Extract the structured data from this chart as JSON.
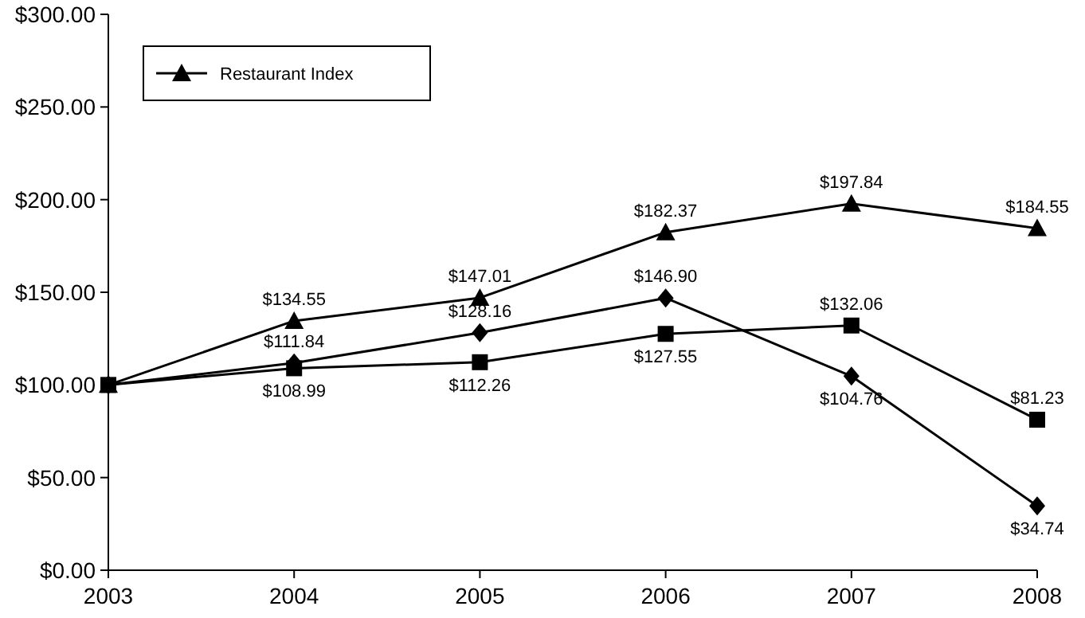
{
  "chart_data": {
    "type": "line",
    "x": [
      2003,
      2004,
      2005,
      2006,
      2007,
      2008
    ],
    "xlim": [
      2003,
      2008
    ],
    "xticks": [
      2003,
      2004,
      2005,
      2006,
      2007,
      2008
    ],
    "ylim": [
      0,
      300
    ],
    "yticks": [
      {
        "value": 0,
        "label": "$0.00"
      },
      {
        "value": 50,
        "label": "$50.00"
      },
      {
        "value": 100,
        "label": "$100.00"
      },
      {
        "value": 150,
        "label": "$150.00"
      },
      {
        "value": 200,
        "label": "$200.00"
      },
      {
        "value": 250,
        "label": "$250.00"
      },
      {
        "value": 300,
        "label": "$300.00"
      }
    ],
    "grid": false,
    "legend": "top left",
    "line_style": "solid",
    "series": [
      {
        "color": "#000000",
        "marker": "diamond",
        "values": [
          100,
          111.84,
          128.16,
          146.9,
          104.76,
          34.74
        ],
        "value_labels": [
          null,
          "$111.84",
          "$128.16",
          "$146.90",
          "$104.76",
          "$34.74"
        ]
      },
      {
        "color": "#000000",
        "marker": "square",
        "values": [
          100,
          108.99,
          112.26,
          127.55,
          132.06,
          81.23
        ],
        "value_labels": [
          null,
          "$108.99",
          "$112.26",
          "$127.55",
          "$132.06",
          "$81.23"
        ]
      },
      {
        "name": "Restaurant Index",
        "color": "#000000",
        "marker": "triangle",
        "values": [
          100,
          134.55,
          147.01,
          182.37,
          197.84,
          184.55
        ],
        "value_labels": [
          null,
          "$134.55",
          "$147.01",
          "$182.37",
          "$197.84",
          "$184.55"
        ]
      }
    ]
  }
}
